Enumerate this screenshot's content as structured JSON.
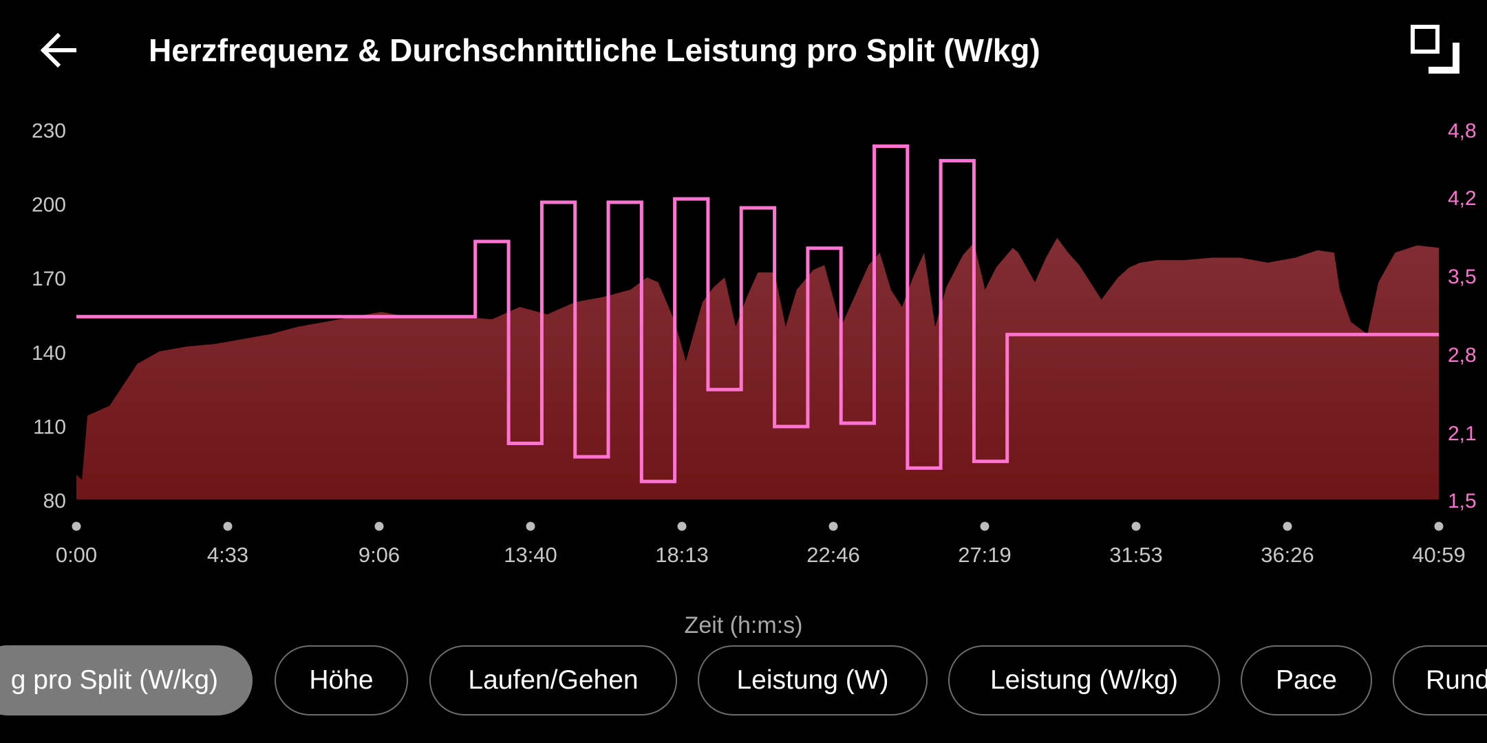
{
  "header": {
    "title": "Herzfrequenz & Durchschnittliche Leistung pro Split (W/kg)"
  },
  "colors": {
    "background": "#000000",
    "hr_fill_top": "#822d33",
    "hr_fill_bottom": "#6e1518",
    "power_line": "#ff73d2",
    "left_axis_text": "#c8c8c8",
    "right_axis_text": "#ff73d2"
  },
  "icons": {
    "back": "arrow-left-icon",
    "expand": "fullscreen-icon"
  },
  "chart_data": {
    "type": "area",
    "x_ticks": [
      "0:00",
      "4:33",
      "9:06",
      "13:40",
      "18:13",
      "22:46",
      "27:19",
      "31:53",
      "36:26",
      "40:59"
    ],
    "xlabel": "Zeit (h:m:s)",
    "xlim_seconds": [
      0,
      2459
    ],
    "left_axis": {
      "ticks": [
        "230",
        "200",
        "170",
        "140",
        "110",
        "80"
      ],
      "ylim": [
        80,
        230
      ]
    },
    "right_axis": {
      "ticks": [
        "4,8",
        "4,2",
        "3,5",
        "2,8",
        "2,1",
        "1,5"
      ],
      "ylim": [
        1.5,
        4.8
      ]
    },
    "series": [
      {
        "type": "area",
        "axis": "left",
        "x_seconds": [
          0,
          10,
          20,
          60,
          110,
          150,
          200,
          250,
          300,
          350,
          400,
          450,
          500,
          550,
          600,
          650,
          700,
          750,
          800,
          850,
          900,
          950,
          1000,
          1030,
          1050,
          1080,
          1100,
          1130,
          1150,
          1170,
          1190,
          1210,
          1230,
          1260,
          1280,
          1300,
          1330,
          1350,
          1380,
          1400,
          1430,
          1450,
          1470,
          1490,
          1510,
          1530,
          1550,
          1570,
          1600,
          1620,
          1640,
          1660,
          1690,
          1700,
          1730,
          1750,
          1770,
          1790,
          1810,
          1830,
          1850,
          1880,
          1900,
          1920,
          1950,
          2000,
          2050,
          2100,
          2150,
          2200,
          2240,
          2270,
          2280,
          2300,
          2330,
          2350,
          2380,
          2420,
          2459
        ],
        "values": [
          90,
          88,
          114,
          118,
          135,
          140,
          142,
          143,
          145,
          147,
          150,
          152,
          154,
          156,
          154,
          154,
          154,
          153,
          158,
          155,
          160,
          162,
          165,
          170,
          168,
          152,
          136,
          160,
          166,
          170,
          150,
          162,
          172,
          172,
          150,
          165,
          173,
          175,
          150,
          160,
          175,
          180,
          165,
          158,
          170,
          180,
          150,
          166,
          179,
          184,
          165,
          174,
          182,
          180,
          168,
          178,
          186,
          180,
          175,
          168,
          161,
          170,
          174,
          176,
          177,
          177,
          178,
          178,
          176,
          178,
          181,
          180,
          165,
          152,
          147,
          168,
          180,
          183,
          182
        ]
      },
      {
        "type": "step",
        "axis": "right",
        "x_seconds": [
          0,
          720,
          780,
          840,
          900,
          960,
          1020,
          1080,
          1140,
          1200,
          1260,
          1320,
          1380,
          1440,
          1500,
          1560,
          1620,
          1680,
          1740,
          1800,
          2459
        ],
        "values": [
          3.13,
          3.8,
          2.0,
          4.15,
          1.88,
          4.15,
          1.66,
          4.18,
          2.48,
          4.1,
          2.15,
          3.74,
          2.18,
          4.65,
          1.78,
          4.52,
          1.84,
          2.97,
          2.97,
          2.97,
          2.97
        ]
      }
    ]
  },
  "chips": [
    {
      "label": "g pro Split (W/kg)",
      "active": true
    },
    {
      "label": "Höhe",
      "active": false
    },
    {
      "label": "Laufen/Gehen",
      "active": false
    },
    {
      "label": "Leistung (W)",
      "active": false
    },
    {
      "label": "Leistung (W/kg)",
      "active": false
    },
    {
      "label": "Pace",
      "active": false
    },
    {
      "label": "Rund",
      "active": false
    }
  ]
}
